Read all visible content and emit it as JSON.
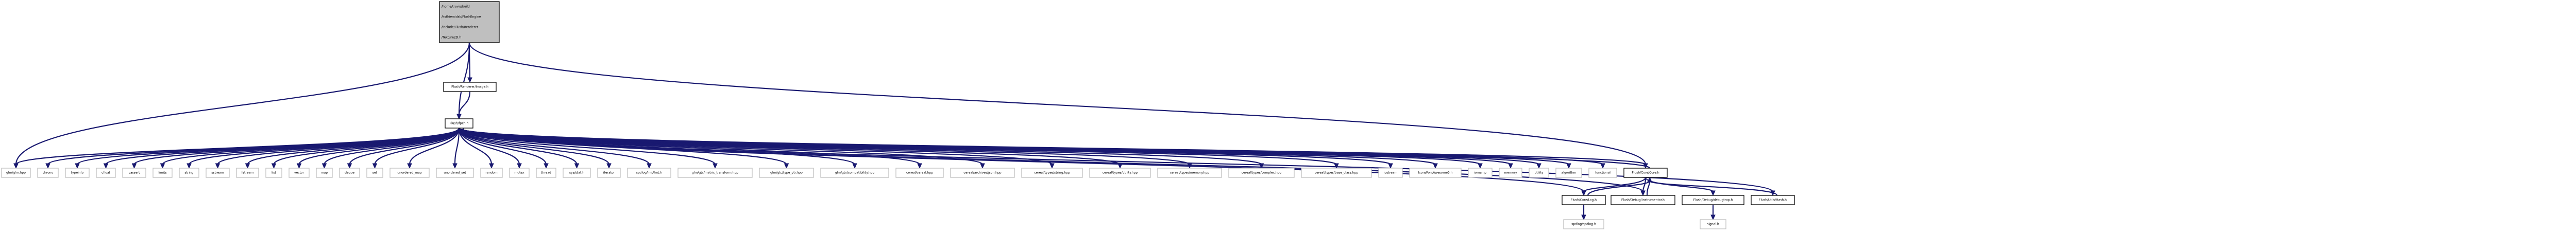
{
  "graph": {
    "type": "include-dependency-graph",
    "nodes": [
      {
        "id": "root",
        "lines": [
          "/home/travis/build",
          "/ksthiemidsk/FlushEngine",
          "/include/Flush/Renderer",
          "/Texture2D.h"
        ],
        "role": "root"
      },
      {
        "id": "image",
        "lines": [
          "Flush/Renderer/Image.h"
        ],
        "role": "link"
      },
      {
        "id": "pch",
        "lines": [
          "Flush/fpch.h"
        ],
        "role": "link"
      },
      {
        "id": "glm",
        "lines": [
          "glm/glm.hpp"
        ],
        "role": "leaf"
      },
      {
        "id": "chrono",
        "lines": [
          "chrono"
        ],
        "role": "leaf"
      },
      {
        "id": "typeinfo",
        "lines": [
          "typeinfo"
        ],
        "role": "leaf"
      },
      {
        "id": "cfloat",
        "lines": [
          "cfloat"
        ],
        "role": "leaf"
      },
      {
        "id": "cassert",
        "lines": [
          "cassert"
        ],
        "role": "leaf"
      },
      {
        "id": "limits",
        "lines": [
          "limits"
        ],
        "role": "leaf"
      },
      {
        "id": "string",
        "lines": [
          "string"
        ],
        "role": "leaf"
      },
      {
        "id": "sstream",
        "lines": [
          "sstream"
        ],
        "role": "leaf"
      },
      {
        "id": "fstream",
        "lines": [
          "fstream"
        ],
        "role": "leaf"
      },
      {
        "id": "list",
        "lines": [
          "list"
        ],
        "role": "leaf"
      },
      {
        "id": "vector",
        "lines": [
          "vector"
        ],
        "role": "leaf"
      },
      {
        "id": "map",
        "lines": [
          "map"
        ],
        "role": "leaf"
      },
      {
        "id": "deque",
        "lines": [
          "deque"
        ],
        "role": "leaf"
      },
      {
        "id": "set",
        "lines": [
          "set"
        ],
        "role": "leaf"
      },
      {
        "id": "umap",
        "lines": [
          "unordered_map"
        ],
        "role": "leaf"
      },
      {
        "id": "uset",
        "lines": [
          "unordered_set"
        ],
        "role": "leaf"
      },
      {
        "id": "random",
        "lines": [
          "random"
        ],
        "role": "leaf"
      },
      {
        "id": "mutex",
        "lines": [
          "mutex"
        ],
        "role": "leaf"
      },
      {
        "id": "thread",
        "lines": [
          "thread"
        ],
        "role": "leaf"
      },
      {
        "id": "sysstat",
        "lines": [
          "sys/stat.h"
        ],
        "role": "leaf"
      },
      {
        "id": "iterator",
        "lines": [
          "iterator"
        ],
        "role": "leaf"
      },
      {
        "id": "fmt",
        "lines": [
          "spdlog/fmt/fmt.h"
        ],
        "role": "leaf"
      },
      {
        "id": "mtx",
        "lines": [
          "glm/gtc/matrix_transform.hpp"
        ],
        "role": "leaf"
      },
      {
        "id": "typeptr",
        "lines": [
          "glm/gtc/type_ptr.hpp"
        ],
        "role": "leaf"
      },
      {
        "id": "compat",
        "lines": [
          "glm/gtx/compatibility.hpp"
        ],
        "role": "leaf"
      },
      {
        "id": "cereal",
        "lines": [
          "cereal/cereal.hpp"
        ],
        "role": "leaf"
      },
      {
        "id": "json",
        "lines": [
          "cereal/archives/json.hpp"
        ],
        "role": "leaf"
      },
      {
        "id": "cstring",
        "lines": [
          "cereal/types/string.hpp"
        ],
        "role": "leaf"
      },
      {
        "id": "cutility",
        "lines": [
          "cereal/types/utility.hpp"
        ],
        "role": "leaf"
      },
      {
        "id": "cmemory",
        "lines": [
          "cereal/types/memory.hpp"
        ],
        "role": "leaf"
      },
      {
        "id": "ccomplex",
        "lines": [
          "cereal/types/complex.hpp"
        ],
        "role": "leaf"
      },
      {
        "id": "cbase",
        "lines": [
          "cereal/types/base_class.hpp"
        ],
        "role": "leaf"
      },
      {
        "id": "iostream",
        "lines": [
          "iostream"
        ],
        "role": "leaf"
      },
      {
        "id": "fa5",
        "lines": [
          "IconsFontAwesome5.h"
        ],
        "role": "leaf"
      },
      {
        "id": "iomanip",
        "lines": [
          "iomanip"
        ],
        "role": "leaf"
      },
      {
        "id": "memory",
        "lines": [
          "memory"
        ],
        "role": "leaf"
      },
      {
        "id": "utility",
        "lines": [
          "utility"
        ],
        "role": "leaf"
      },
      {
        "id": "algorithm",
        "lines": [
          "algorithm"
        ],
        "role": "leaf"
      },
      {
        "id": "functional",
        "lines": [
          "functional"
        ],
        "role": "leaf"
      },
      {
        "id": "core",
        "lines": [
          "Flush/Core/Core.h"
        ],
        "role": "link"
      },
      {
        "id": "log",
        "lines": [
          "Flush/Core/Log.h"
        ],
        "role": "link"
      },
      {
        "id": "instr",
        "lines": [
          "Flush/Debug/Instrumentor.h"
        ],
        "role": "link"
      },
      {
        "id": "debugtrap",
        "lines": [
          "Flush/Debug/debugtrap.h"
        ],
        "role": "link"
      },
      {
        "id": "hash",
        "lines": [
          "Flush/Utils/Hash.h"
        ],
        "role": "link"
      },
      {
        "id": "spdlog",
        "lines": [
          "spdlog/spdlog.h"
        ],
        "role": "leaf"
      },
      {
        "id": "signal",
        "lines": [
          "signal.h"
        ],
        "role": "leaf"
      }
    ],
    "edges": [
      [
        "root",
        "image"
      ],
      [
        "root",
        "pch"
      ],
      [
        "root",
        "glm"
      ],
      [
        "root",
        "core"
      ],
      [
        "image",
        "pch"
      ],
      [
        "pch",
        "glm"
      ],
      [
        "pch",
        "chrono"
      ],
      [
        "pch",
        "typeinfo"
      ],
      [
        "pch",
        "cfloat"
      ],
      [
        "pch",
        "cassert"
      ],
      [
        "pch",
        "limits"
      ],
      [
        "pch",
        "string"
      ],
      [
        "pch",
        "sstream"
      ],
      [
        "pch",
        "fstream"
      ],
      [
        "pch",
        "list"
      ],
      [
        "pch",
        "vector"
      ],
      [
        "pch",
        "map"
      ],
      [
        "pch",
        "deque"
      ],
      [
        "pch",
        "set"
      ],
      [
        "pch",
        "umap"
      ],
      [
        "pch",
        "uset"
      ],
      [
        "pch",
        "random"
      ],
      [
        "pch",
        "mutex"
      ],
      [
        "pch",
        "thread"
      ],
      [
        "pch",
        "sysstat"
      ],
      [
        "pch",
        "iterator"
      ],
      [
        "pch",
        "fmt"
      ],
      [
        "pch",
        "mtx"
      ],
      [
        "pch",
        "typeptr"
      ],
      [
        "pch",
        "compat"
      ],
      [
        "pch",
        "cereal"
      ],
      [
        "pch",
        "json"
      ],
      [
        "pch",
        "cstring"
      ],
      [
        "pch",
        "cutility"
      ],
      [
        "pch",
        "cmemory"
      ],
      [
        "pch",
        "ccomplex"
      ],
      [
        "pch",
        "cbase"
      ],
      [
        "pch",
        "iostream"
      ],
      [
        "pch",
        "fa5"
      ],
      [
        "pch",
        "iomanip"
      ],
      [
        "pch",
        "memory"
      ],
      [
        "pch",
        "utility"
      ],
      [
        "pch",
        "algorithm"
      ],
      [
        "pch",
        "functional"
      ],
      [
        "pch",
        "core"
      ],
      [
        "pch",
        "log"
      ],
      [
        "pch",
        "instr"
      ],
      [
        "pch",
        "hash"
      ],
      [
        "core",
        "pch"
      ],
      [
        "core",
        "log"
      ],
      [
        "core",
        "instr"
      ],
      [
        "core",
        "debugtrap"
      ],
      [
        "log",
        "core"
      ],
      [
        "log",
        "spdlog"
      ],
      [
        "instr",
        "core"
      ],
      [
        "debugtrap",
        "signal"
      ],
      [
        "hash",
        "core"
      ]
    ]
  }
}
